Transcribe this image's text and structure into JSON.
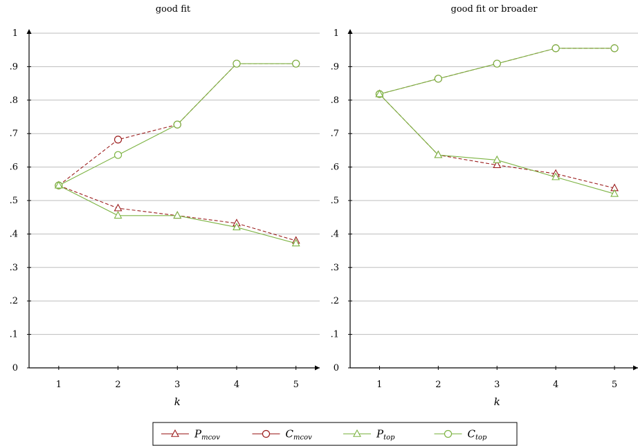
{
  "chart_data": [
    {
      "type": "line",
      "title": "good fit",
      "xlabel": "k",
      "ylabel": "",
      "x": [
        1,
        2,
        3,
        4,
        5
      ],
      "ylim": [
        0,
        1
      ],
      "yticks": [
        "0",
        ".1",
        ".2",
        ".3",
        ".4",
        ".5",
        ".6",
        ".7",
        ".8",
        ".9",
        "1"
      ],
      "xticks": [
        "1",
        "2",
        "3",
        "4",
        "5"
      ],
      "grid": "horizontal",
      "series": [
        {
          "name": "P_mcov",
          "values": [
            0.545,
            0.477,
            0.455,
            0.432,
            0.38
          ],
          "color": "#9b1c1c",
          "dash": true,
          "marker": "triangle"
        },
        {
          "name": "C_mcov",
          "values": [
            0.545,
            0.682,
            0.727,
            0.909,
            0.909
          ],
          "color": "#9b1c1c",
          "dash": true,
          "marker": "circle"
        },
        {
          "name": "P_top",
          "values": [
            0.545,
            0.455,
            0.455,
            0.42,
            0.372
          ],
          "color": "#7cb342",
          "dash": false,
          "marker": "triangle"
        },
        {
          "name": "C_top",
          "values": [
            0.545,
            0.636,
            0.727,
            0.909,
            0.909
          ],
          "color": "#7cb342",
          "dash": false,
          "marker": "circle"
        }
      ]
    },
    {
      "type": "line",
      "title": "good fit or broader",
      "xlabel": "k",
      "ylabel": "",
      "x": [
        1,
        2,
        3,
        4,
        5
      ],
      "ylim": [
        0,
        1
      ],
      "yticks": [
        "0",
        ".1",
        ".2",
        ".3",
        ".4",
        ".5",
        ".6",
        ".7",
        ".8",
        ".9",
        "1"
      ],
      "xticks": [
        "1",
        "2",
        "3",
        "4",
        "5"
      ],
      "grid": "horizontal",
      "series": [
        {
          "name": "P_mcov",
          "values": [
            0.818,
            0.636,
            0.606,
            0.58,
            0.537
          ],
          "color": "#9b1c1c",
          "dash": true,
          "marker": "triangle"
        },
        {
          "name": "C_mcov",
          "values": [
            0.818,
            0.864,
            0.909,
            0.955,
            0.955
          ],
          "color": "#9b1c1c",
          "dash": true,
          "marker": "circle"
        },
        {
          "name": "P_top",
          "values": [
            0.818,
            0.636,
            0.621,
            0.57,
            0.52
          ],
          "color": "#7cb342",
          "dash": false,
          "marker": "triangle"
        },
        {
          "name": "C_top",
          "values": [
            0.818,
            0.864,
            0.909,
            0.955,
            0.955
          ],
          "color": "#7cb342",
          "dash": false,
          "marker": "circle"
        }
      ]
    }
  ],
  "legend": {
    "placement": "bottom-center",
    "entries": [
      {
        "main": "P",
        "sub": "mcov",
        "color": "#9b1c1c",
        "marker": "triangle"
      },
      {
        "main": "C",
        "sub": "mcov",
        "color": "#9b1c1c",
        "marker": "circle"
      },
      {
        "main": "P",
        "sub": "top",
        "color": "#7cb342",
        "marker": "triangle"
      },
      {
        "main": "C",
        "sub": "top",
        "color": "#7cb342",
        "marker": "circle"
      }
    ]
  }
}
